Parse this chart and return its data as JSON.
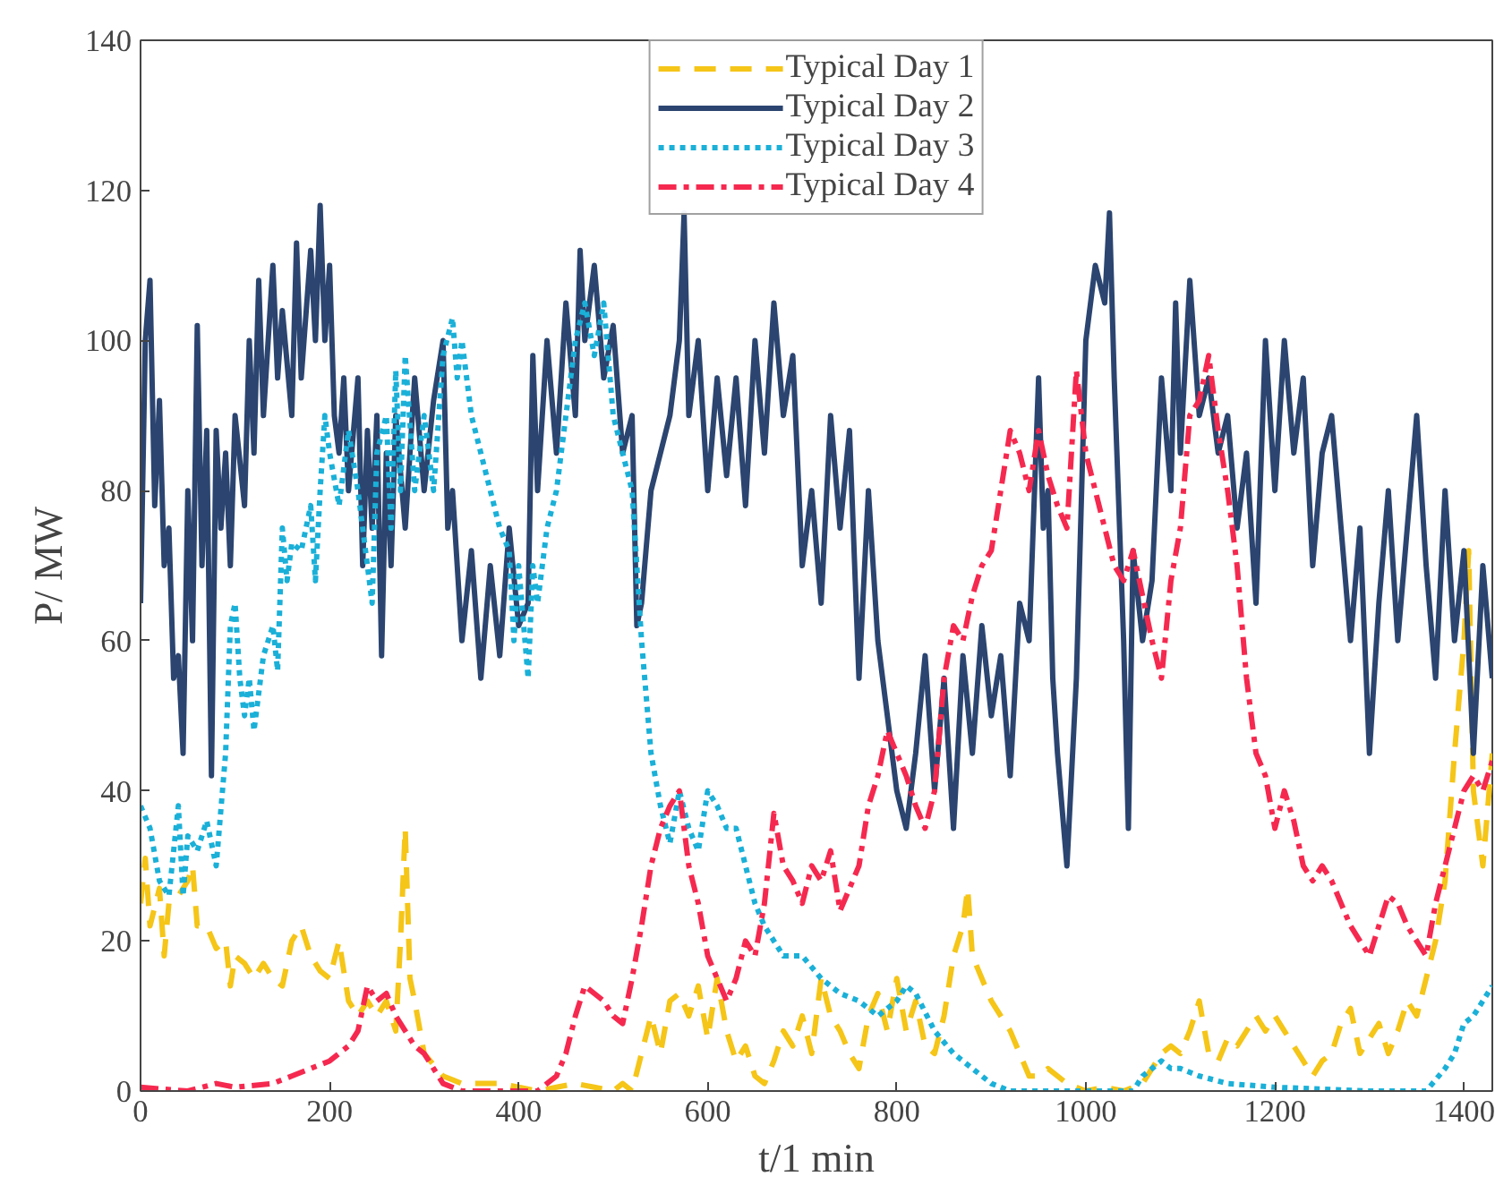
{
  "chart_data": {
    "type": "line",
    "xlabel": "t/1 min",
    "ylabel": "P/ MW",
    "xlim": [
      0,
      1430
    ],
    "ylim": [
      0,
      140
    ],
    "xticks": [
      0,
      200,
      400,
      600,
      800,
      1000,
      1200,
      1400
    ],
    "yticks": [
      0,
      20,
      40,
      60,
      80,
      100,
      120,
      140
    ],
    "grid": false,
    "legend": "top",
    "marker": "none",
    "series": [
      {
        "name": "Typical Day 1",
        "color": "#f5c518",
        "line_style": "dashed",
        "x": [
          0,
          5,
          10,
          20,
          25,
          30,
          40,
          50,
          55,
          60,
          70,
          80,
          90,
          95,
          100,
          110,
          120,
          130,
          140,
          150,
          160,
          170,
          180,
          190,
          200,
          210,
          220,
          230,
          240,
          250,
          260,
          270,
          275,
          280,
          285,
          290,
          300,
          320,
          340,
          360,
          380,
          400,
          420,
          440,
          460,
          480,
          500,
          510,
          520,
          530,
          540,
          550,
          560,
          570,
          580,
          590,
          600,
          610,
          620,
          630,
          640,
          650,
          660,
          670,
          680,
          690,
          700,
          710,
          720,
          730,
          740,
          750,
          760,
          770,
          780,
          790,
          800,
          810,
          820,
          830,
          840,
          850,
          860,
          870,
          875,
          880,
          890,
          900,
          910,
          920,
          930,
          940,
          950,
          960,
          980,
          1000,
          1020,
          1040,
          1060,
          1080,
          1090,
          1100,
          1110,
          1120,
          1130,
          1140,
          1150,
          1160,
          1170,
          1180,
          1190,
          1200,
          1210,
          1220,
          1230,
          1240,
          1250,
          1260,
          1270,
          1280,
          1290,
          1300,
          1310,
          1320,
          1330,
          1340,
          1350,
          1360,
          1370,
          1380,
          1390,
          1400,
          1405,
          1410,
          1420,
          1430
        ],
        "values": [
          25,
          31,
          22,
          27,
          18,
          25,
          26,
          28,
          30,
          22,
          22,
          19,
          20,
          14,
          18,
          17,
          15,
          17,
          15,
          14,
          20,
          22,
          18,
          16,
          15,
          20,
          12,
          10,
          12,
          10,
          12,
          8,
          20,
          35,
          15,
          12,
          5,
          2,
          1,
          1,
          1,
          0.5,
          0,
          0.5,
          1,
          0.5,
          0,
          1,
          0,
          5,
          10,
          5,
          12,
          13,
          10,
          14,
          7,
          15,
          8,
          4,
          6,
          2,
          1,
          4,
          8,
          6,
          10,
          5,
          15,
          10,
          8,
          5,
          3,
          10,
          13,
          8,
          15,
          8,
          12,
          6,
          5,
          10,
          18,
          22,
          27,
          18,
          15,
          12,
          10,
          8,
          5,
          2,
          2,
          3,
          1,
          0,
          0.5,
          0,
          1,
          5,
          6,
          5,
          8,
          12,
          5,
          4,
          7,
          6,
          8,
          10,
          8,
          10,
          8,
          6,
          4,
          2,
          4,
          5,
          9,
          11,
          5,
          7,
          9,
          5,
          8,
          12,
          10,
          15,
          20,
          28,
          45,
          60,
          72,
          40,
          30,
          45
        ]
      },
      {
        "name": "Typical Day 2",
        "color": "#2b4570",
        "line_style": "solid",
        "x": [
          0,
          5,
          10,
          15,
          20,
          25,
          30,
          35,
          40,
          45,
          50,
          55,
          60,
          65,
          70,
          75,
          80,
          85,
          90,
          95,
          100,
          110,
          115,
          120,
          125,
          130,
          140,
          145,
          150,
          160,
          165,
          170,
          180,
          185,
          190,
          195,
          200,
          205,
          210,
          215,
          220,
          230,
          235,
          240,
          245,
          250,
          255,
          260,
          265,
          270,
          280,
          290,
          300,
          310,
          320,
          325,
          330,
          340,
          350,
          360,
          370,
          380,
          390,
          400,
          410,
          415,
          420,
          430,
          440,
          450,
          460,
          465,
          470,
          480,
          490,
          500,
          510,
          520,
          525,
          530,
          540,
          550,
          560,
          570,
          575,
          580,
          590,
          600,
          610,
          620,
          630,
          640,
          650,
          660,
          670,
          680,
          690,
          700,
          710,
          720,
          730,
          740,
          750,
          760,
          770,
          780,
          790,
          800,
          810,
          820,
          830,
          840,
          850,
          860,
          870,
          880,
          890,
          900,
          910,
          920,
          930,
          940,
          950,
          955,
          960,
          965,
          970,
          980,
          990,
          1000,
          1010,
          1020,
          1025,
          1030,
          1040,
          1045,
          1050,
          1060,
          1070,
          1080,
          1090,
          1095,
          1100,
          1110,
          1120,
          1130,
          1140,
          1150,
          1160,
          1170,
          1180,
          1190,
          1200,
          1210,
          1220,
          1230,
          1240,
          1250,
          1260,
          1270,
          1280,
          1290,
          1300,
          1310,
          1320,
          1330,
          1340,
          1350,
          1360,
          1370,
          1380,
          1390,
          1400,
          1410,
          1420,
          1430
        ],
        "values": [
          65,
          100,
          108,
          78,
          92,
          70,
          75,
          55,
          58,
          45,
          80,
          60,
          102,
          70,
          88,
          42,
          88,
          75,
          85,
          70,
          90,
          78,
          100,
          85,
          108,
          90,
          110,
          95,
          104,
          90,
          113,
          95,
          112,
          100,
          118,
          100,
          110,
          90,
          85,
          95,
          80,
          95,
          70,
          88,
          75,
          90,
          58,
          85,
          70,
          90,
          75,
          95,
          80,
          92,
          100,
          75,
          80,
          60,
          72,
          55,
          70,
          58,
          75,
          62,
          65,
          98,
          80,
          100,
          85,
          105,
          90,
          112,
          100,
          110,
          95,
          102,
          85,
          90,
          62,
          65,
          80,
          85,
          90,
          100,
          117,
          90,
          100,
          80,
          95,
          82,
          95,
          78,
          100,
          85,
          105,
          90,
          98,
          70,
          80,
          65,
          90,
          75,
          88,
          55,
          80,
          60,
          50,
          40,
          35,
          45,
          58,
          40,
          55,
          35,
          58,
          45,
          62,
          50,
          58,
          42,
          65,
          60,
          95,
          75,
          80,
          55,
          45,
          30,
          55,
          100,
          110,
          105,
          117,
          95,
          60,
          35,
          72,
          60,
          68,
          95,
          80,
          105,
          85,
          108,
          90,
          95,
          85,
          90,
          75,
          85,
          65,
          100,
          80,
          100,
          85,
          95,
          70,
          85,
          90,
          75,
          60,
          75,
          45,
          65,
          80,
          60,
          75,
          90,
          70,
          55,
          80,
          60,
          72,
          45,
          70,
          55
        ]
      },
      {
        "name": "Typical Day 3",
        "color": "#1ab0d8",
        "line_style": "dotted",
        "x": [
          0,
          10,
          20,
          30,
          40,
          45,
          50,
          60,
          70,
          80,
          90,
          95,
          100,
          105,
          110,
          115,
          120,
          130,
          140,
          145,
          150,
          155,
          160,
          170,
          180,
          185,
          190,
          195,
          200,
          210,
          220,
          230,
          240,
          245,
          250,
          260,
          265,
          270,
          275,
          280,
          290,
          300,
          310,
          320,
          330,
          335,
          340,
          350,
          360,
          370,
          380,
          390,
          395,
          400,
          410,
          415,
          420,
          430,
          440,
          450,
          460,
          470,
          480,
          490,
          500,
          510,
          520,
          530,
          540,
          550,
          560,
          570,
          580,
          590,
          600,
          610,
          620,
          630,
          640,
          650,
          660,
          670,
          680,
          700,
          720,
          740,
          760,
          780,
          800,
          810,
          820,
          840,
          860,
          880,
          900,
          920,
          1000,
          1050,
          1060,
          1070,
          1080,
          1090,
          1100,
          1120,
          1150,
          1200,
          1300,
          1360,
          1380,
          1390,
          1400,
          1410,
          1420,
          1430
        ],
        "values": [
          38,
          35,
          28,
          26,
          38,
          26,
          34,
          32,
          36,
          30,
          45,
          62,
          65,
          55,
          50,
          55,
          48,
          58,
          62,
          56,
          75,
          68,
          73,
          72,
          78,
          68,
          80,
          90,
          85,
          78,
          88,
          80,
          70,
          65,
          85,
          90,
          75,
          96,
          80,
          98,
          80,
          90,
          80,
          98,
          103,
          95,
          100,
          90,
          85,
          80,
          75,
          72,
          60,
          70,
          55,
          70,
          65,
          75,
          80,
          90,
          100,
          105,
          98,
          105,
          90,
          85,
          80,
          60,
          45,
          38,
          33,
          40,
          35,
          32,
          40,
          38,
          35,
          35,
          30,
          25,
          22,
          20,
          18,
          18,
          15,
          13,
          12,
          10,
          12,
          14,
          13,
          8,
          5,
          3,
          1,
          0,
          0,
          0,
          2,
          3,
          4,
          3,
          3,
          2,
          1,
          0.5,
          0,
          0,
          3,
          5,
          9,
          10,
          12,
          14
        ]
      },
      {
        "name": "Typical Day 4",
        "color": "#f5294f",
        "line_style": "dashdot",
        "x": [
          0,
          50,
          80,
          100,
          140,
          160,
          180,
          200,
          220,
          230,
          240,
          250,
          260,
          270,
          280,
          290,
          300,
          310,
          320,
          340,
          400,
          420,
          440,
          450,
          460,
          470,
          480,
          490,
          500,
          510,
          520,
          530,
          540,
          550,
          560,
          570,
          580,
          590,
          600,
          610,
          620,
          630,
          640,
          650,
          660,
          670,
          680,
          690,
          700,
          710,
          720,
          730,
          740,
          750,
          760,
          770,
          780,
          790,
          800,
          810,
          820,
          830,
          840,
          850,
          860,
          870,
          880,
          890,
          900,
          910,
          920,
          930,
          940,
          950,
          960,
          970,
          980,
          990,
          1000,
          1010,
          1020,
          1030,
          1040,
          1050,
          1060,
          1070,
          1080,
          1090,
          1100,
          1110,
          1120,
          1130,
          1140,
          1150,
          1160,
          1170,
          1180,
          1190,
          1200,
          1210,
          1220,
          1230,
          1240,
          1250,
          1260,
          1270,
          1280,
          1290,
          1300,
          1310,
          1320,
          1330,
          1340,
          1350,
          1360,
          1370,
          1380,
          1390,
          1400,
          1410,
          1420,
          1430
        ],
        "values": [
          0.5,
          0,
          1,
          0.5,
          1,
          2,
          3,
          4,
          6,
          8,
          14,
          12,
          13,
          10,
          8,
          6,
          5,
          3,
          1,
          0,
          0,
          0,
          2,
          5,
          10,
          14,
          13,
          12,
          10,
          9,
          15,
          22,
          30,
          35,
          38,
          40,
          30,
          25,
          18,
          15,
          12,
          15,
          20,
          18,
          25,
          37,
          30,
          28,
          25,
          30,
          28,
          32,
          24,
          27,
          30,
          38,
          42,
          48,
          45,
          42,
          38,
          35,
          40,
          55,
          62,
          60,
          66,
          70,
          72,
          80,
          88,
          85,
          80,
          88,
          82,
          78,
          75,
          96,
          85,
          80,
          75,
          70,
          68,
          72,
          66,
          60,
          55,
          68,
          75,
          90,
          92,
          98,
          88,
          80,
          70,
          55,
          45,
          42,
          35,
          40,
          36,
          30,
          28,
          30,
          28,
          25,
          22,
          20,
          18,
          22,
          26,
          25,
          22,
          20,
          18,
          25,
          30,
          35,
          40,
          42,
          40,
          44
        ]
      }
    ]
  }
}
